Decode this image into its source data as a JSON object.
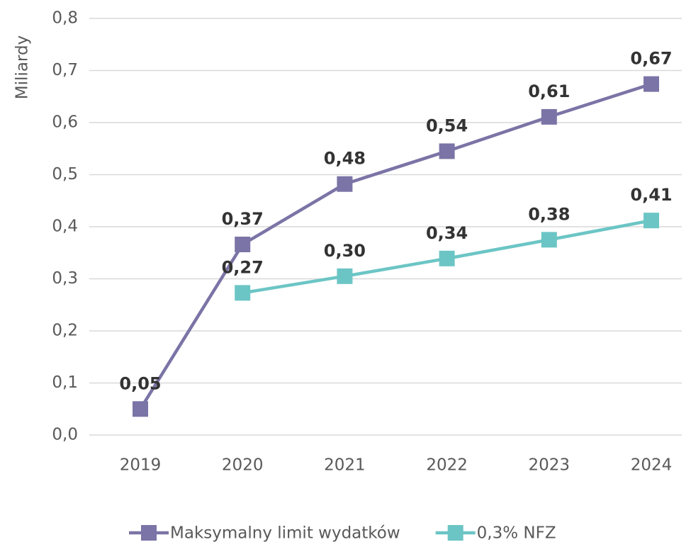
{
  "chart_data": {
    "type": "line",
    "y_label": "Miliardy",
    "categories": [
      "2019",
      "2020",
      "2021",
      "2022",
      "2023",
      "2024"
    ],
    "series": [
      {
        "name": "Maksymalny limit wydatków",
        "color": "#7b74a6",
        "values": [
          0.05,
          0.366,
          0.482,
          0.545,
          0.611,
          0.674
        ],
        "value_labels": [
          "0,05",
          "0,37",
          "0,48",
          "0,54",
          "0,61",
          "0,67"
        ]
      },
      {
        "name": "0,3% NFZ",
        "color": "#6cc5c5",
        "values": [
          null,
          0.273,
          0.305,
          0.339,
          0.375,
          0.412
        ],
        "value_labels": [
          null,
          "0,27",
          "0,30",
          "0,34",
          "0,38",
          "0,41"
        ]
      }
    ],
    "ylim": [
      0,
      0.8
    ],
    "yticks": [
      {
        "value": 0,
        "label": "0,0"
      },
      {
        "value": 0.1,
        "label": "0,1"
      },
      {
        "value": 0.2,
        "label": "0,2"
      },
      {
        "value": 0.3,
        "label": "0,3"
      },
      {
        "value": 0.4,
        "label": "0,4"
      },
      {
        "value": 0.5,
        "label": "0,5"
      },
      {
        "value": 0.6,
        "label": "0,6"
      },
      {
        "value": 0.7,
        "label": "0,7"
      },
      {
        "value": 0.8,
        "label": "0,8"
      }
    ],
    "grid": true,
    "legend": "bottom"
  }
}
